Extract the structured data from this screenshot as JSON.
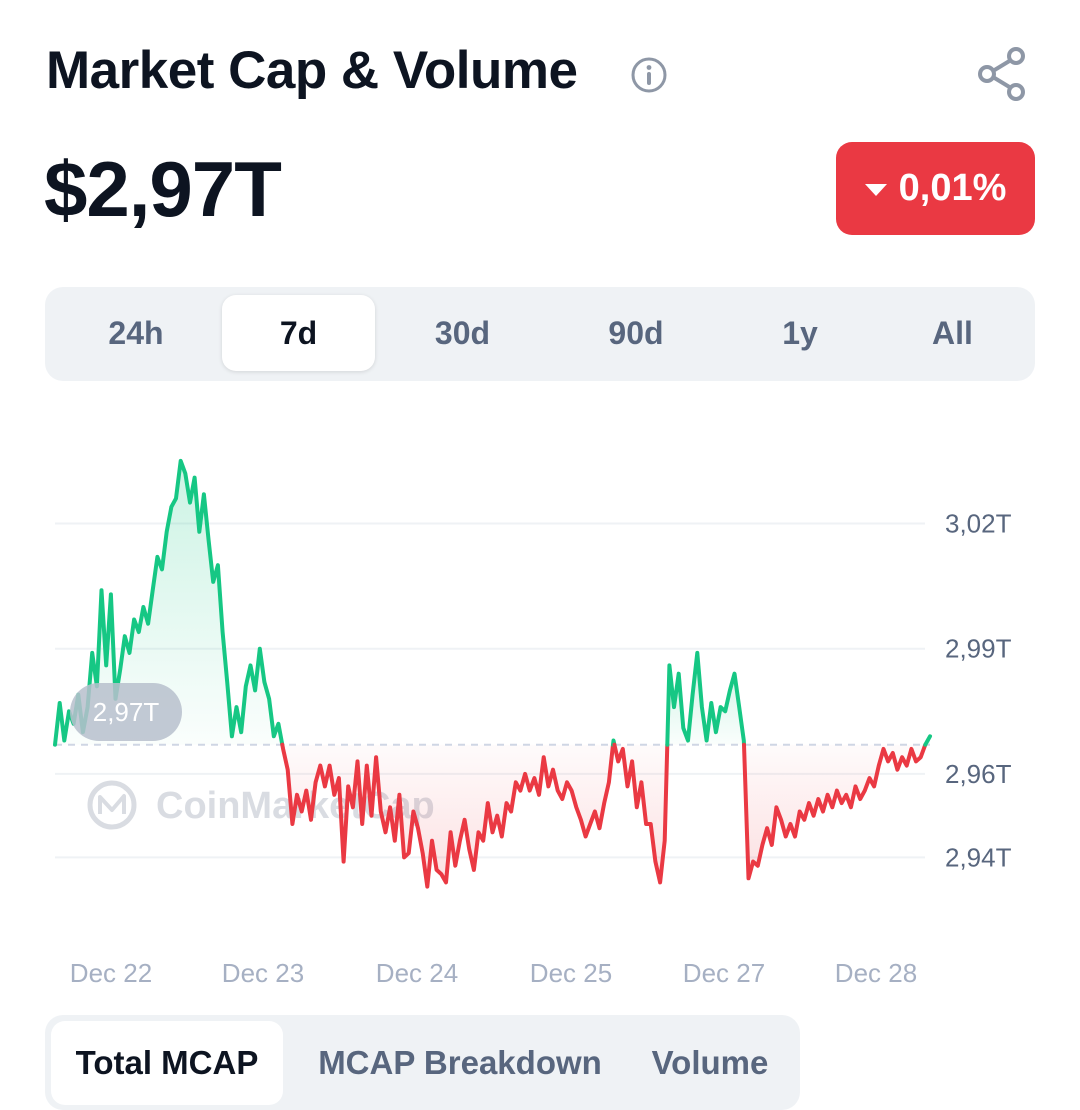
{
  "header": {
    "title": "Market Cap & Volume",
    "info_icon": "info-circle-icon",
    "share_icon": "share-icon"
  },
  "summary": {
    "value": "$2,97T",
    "change": "0,01%",
    "change_direction": "down",
    "change_color": "#ea3943"
  },
  "range_tabs": {
    "items": [
      "24h",
      "7d",
      "30d",
      "90d",
      "1y",
      "All"
    ],
    "active": "7d"
  },
  "bottom_tabs": {
    "items": [
      "Total MCAP",
      "MCAP Breakdown",
      "Volume"
    ],
    "active": "Total MCAP"
  },
  "chart_data": {
    "type": "line",
    "title": "",
    "xlabel": "",
    "ylabel": "",
    "x_ticks": [
      "Dec 22",
      "Dec 23",
      "Dec 24",
      "Dec 25",
      "Dec 27",
      "Dec 28"
    ],
    "y_ticks": [
      "3,02T",
      "2,99T",
      "2,96T",
      "2,94T"
    ],
    "y_tick_values": [
      3.02,
      2.99,
      2.96,
      2.94
    ],
    "ylim": [
      2.925,
      3.04
    ],
    "baseline": 2.967,
    "baseline_label": "2,97T",
    "watermark": "CoinMarketCap",
    "grid": true,
    "colors": {
      "up": "#16c784",
      "down": "#ea3943",
      "grid": "#eff2f5",
      "baseline": "#cfd6e4"
    },
    "series": [
      {
        "values": [
          2.967,
          2.977,
          2.968,
          2.975,
          2.972,
          2.979,
          2.97,
          2.976,
          2.989,
          2.981,
          3.004,
          2.986,
          3.003,
          2.978,
          2.985,
          2.993,
          2.989,
          2.997,
          2.994,
          3.0,
          2.996,
          3.004,
          3.012,
          3.009,
          3.018,
          3.024,
          3.026,
          3.035,
          3.032,
          3.025,
          3.031,
          3.018,
          3.027,
          3.016,
          3.006,
          3.01,
          2.994,
          2.982,
          2.969,
          2.976,
          2.97,
          2.981,
          2.986,
          2.98,
          2.99,
          2.982,
          2.978,
          2.969,
          2.972,
          2.966,
          2.961,
          2.948,
          2.955,
          2.951,
          2.956,
          2.949,
          2.958,
          2.962,
          2.957,
          2.962,
          2.955,
          2.959,
          2.939,
          2.957,
          2.952,
          2.963,
          2.948,
          2.962,
          2.95,
          2.964,
          2.951,
          2.946,
          2.952,
          2.944,
          2.955,
          2.94,
          2.941,
          2.951,
          2.947,
          2.941,
          2.933,
          2.944,
          2.937,
          2.936,
          2.934,
          2.946,
          2.938,
          2.944,
          2.949,
          2.942,
          2.937,
          2.946,
          2.944,
          2.953,
          2.946,
          2.95,
          2.945,
          2.953,
          2.951,
          2.958,
          2.956,
          2.96,
          2.956,
          2.959,
          2.955,
          2.964,
          2.957,
          2.961,
          2.956,
          2.954,
          2.958,
          2.956,
          2.952,
          2.949,
          2.945,
          2.948,
          2.951,
          2.947,
          2.953,
          2.958,
          2.968,
          2.963,
          2.966,
          2.957,
          2.963,
          2.952,
          2.958,
          2.948,
          2.948,
          2.939,
          2.934,
          2.944,
          2.986,
          2.976,
          2.984,
          2.971,
          2.968,
          2.979,
          2.989,
          2.976,
          2.968,
          2.977,
          2.97,
          2.976,
          2.975,
          2.98,
          2.984,
          2.976,
          2.968,
          2.935,
          2.939,
          2.938,
          2.943,
          2.947,
          2.943,
          2.952,
          2.949,
          2.945,
          2.948,
          2.945,
          2.951,
          2.949,
          2.953,
          2.95,
          2.954,
          2.951,
          2.955,
          2.952,
          2.956,
          2.953,
          2.955,
          2.952,
          2.957,
          2.954,
          2.956,
          2.959,
          2.957,
          2.962,
          2.966,
          2.963,
          2.965,
          2.961,
          2.964,
          2.962,
          2.966,
          2.963,
          2.964,
          2.967,
          2.969
        ]
      }
    ]
  }
}
